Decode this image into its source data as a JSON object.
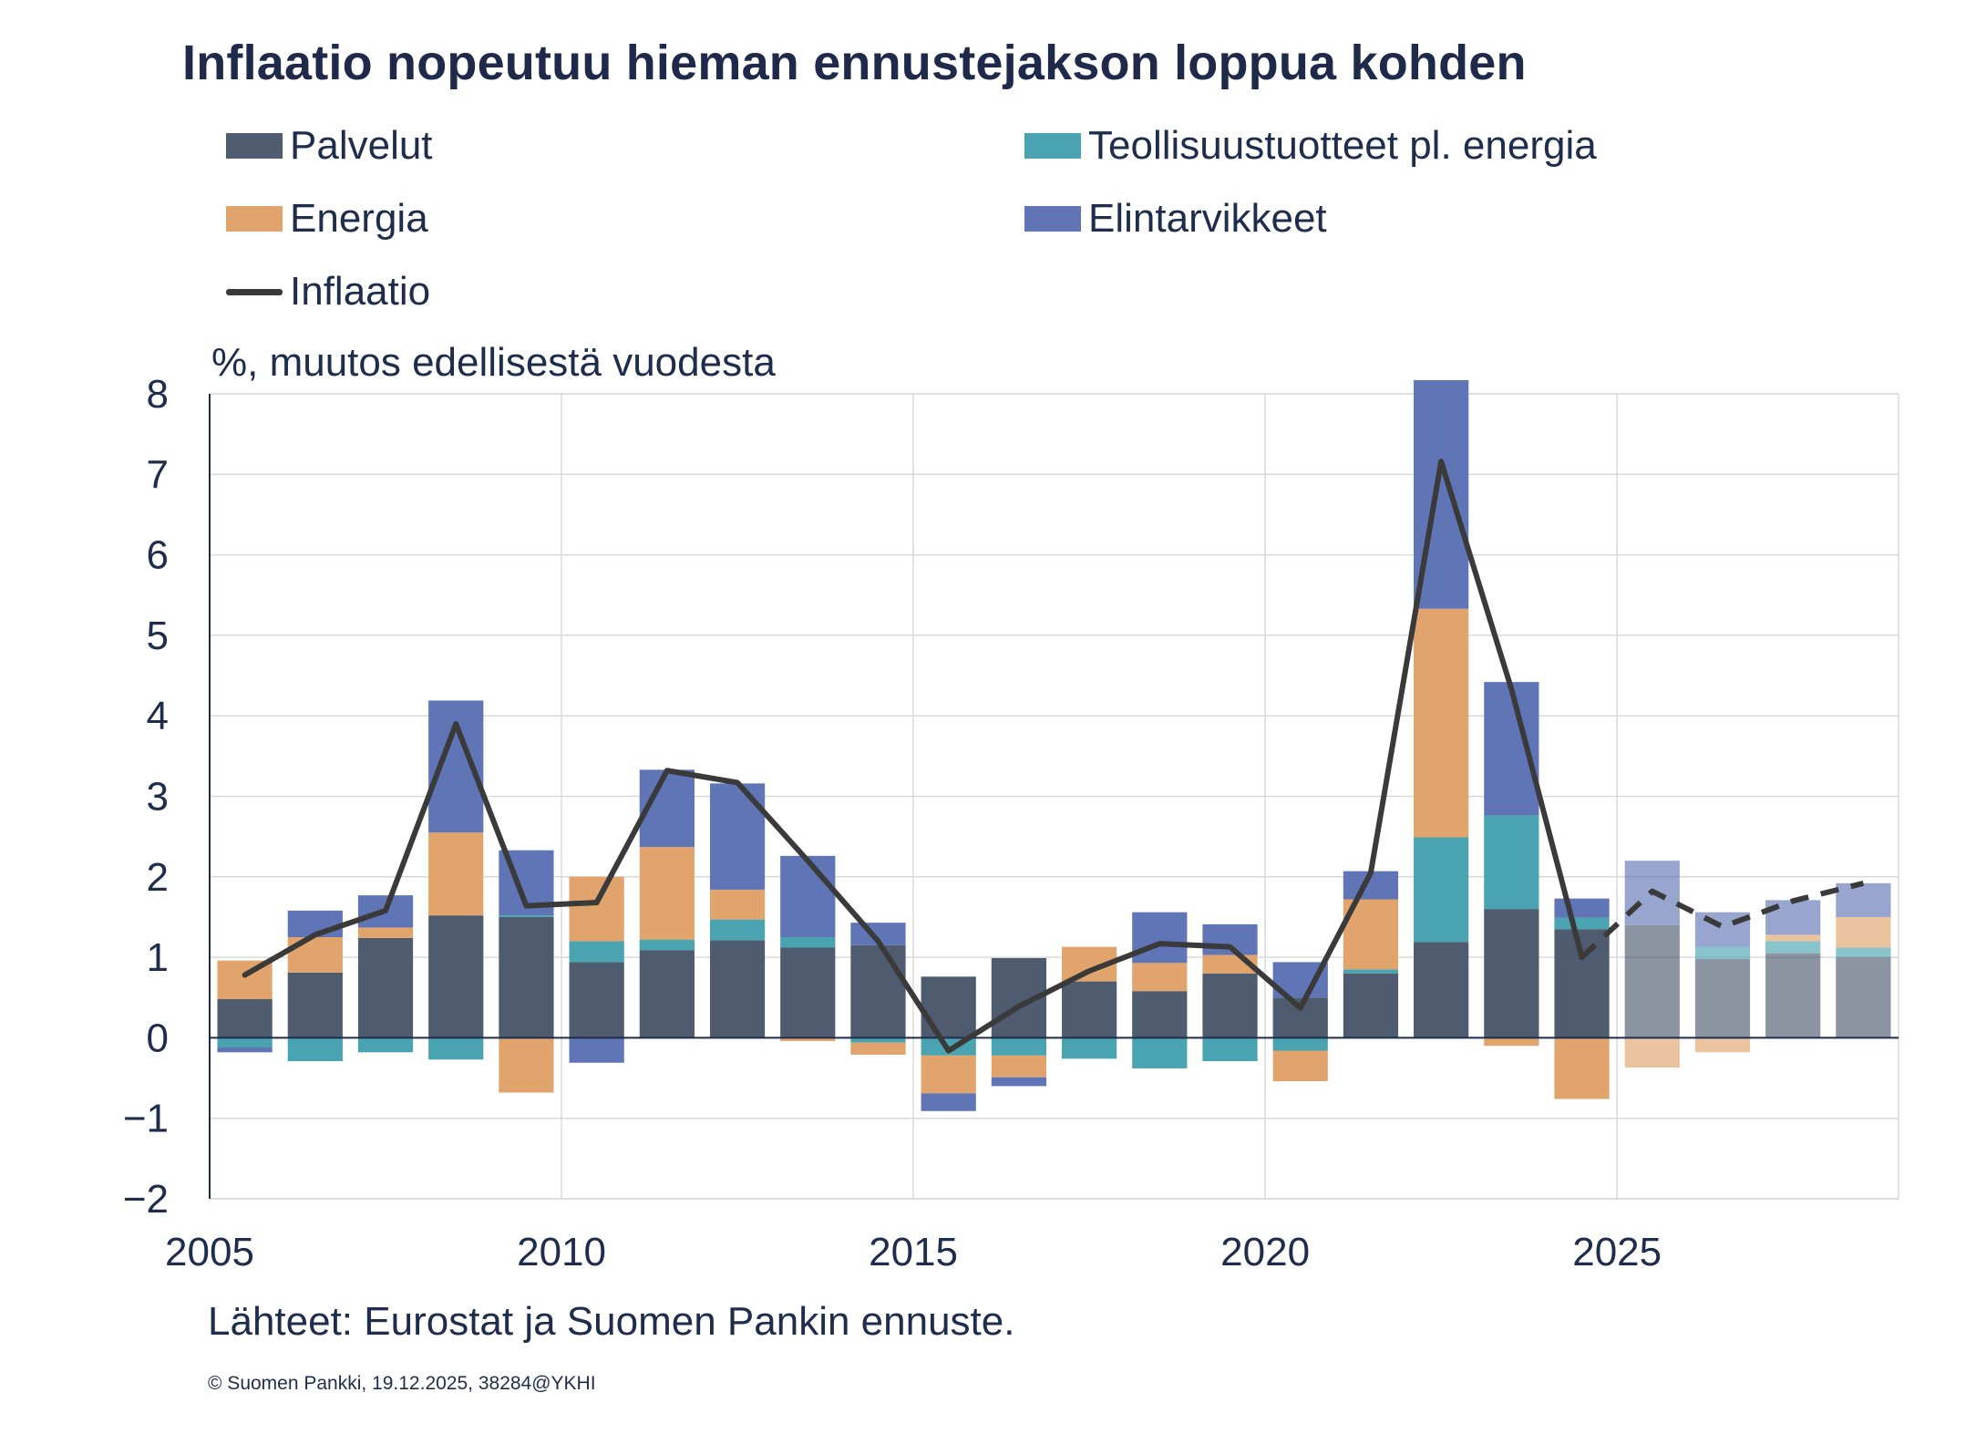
{
  "chart_data": {
    "type": "bar",
    "stacked": true,
    "title": "Inflaatio nopeutuu hieman ennustejakson loppua kohden",
    "ylabel": "%, muutos edellisestä vuodesta",
    "xlabel": "",
    "ylim": [
      -2,
      8
    ],
    "yticks": [
      -2,
      -1,
      0,
      1,
      2,
      3,
      4,
      5,
      6,
      7,
      8
    ],
    "ytick_labels": [
      "−2",
      "−1",
      "0",
      "1",
      "2",
      "3",
      "4",
      "5",
      "6",
      "7",
      "8"
    ],
    "xticks": [
      2005,
      2010,
      2015,
      2020,
      2025
    ],
    "xtick_labels": [
      "2005",
      "2010",
      "2015",
      "2020",
      "2025"
    ],
    "x_range": [
      2005,
      2029
    ],
    "categories": [
      2005,
      2006,
      2007,
      2008,
      2009,
      2010,
      2011,
      2012,
      2013,
      2014,
      2015,
      2016,
      2017,
      2018,
      2019,
      2020,
      2021,
      2022,
      2023,
      2024,
      2025,
      2026,
      2027,
      2028
    ],
    "forecast_start": 2025,
    "legend_position": "top",
    "series": [
      {
        "name": "Palvelut",
        "color": "#4f5b6e",
        "values": [
          0.48,
          0.81,
          1.24,
          1.52,
          1.5,
          0.94,
          1.09,
          1.21,
          1.12,
          1.15,
          0.76,
          0.99,
          0.7,
          0.58,
          0.8,
          0.5,
          0.8,
          1.19,
          1.6,
          1.35,
          1.4,
          0.98,
          1.05,
          1.0
        ]
      },
      {
        "name": "Teollisuustuotteet pl. energia",
        "color": "#4aa3b0",
        "values": [
          -0.12,
          -0.29,
          -0.18,
          -0.27,
          0.02,
          0.26,
          0.13,
          0.26,
          0.13,
          -0.06,
          -0.22,
          -0.22,
          -0.26,
          -0.38,
          -0.29,
          -0.16,
          0.05,
          1.3,
          1.16,
          0.14,
          0.0,
          0.15,
          0.15,
          0.12
        ]
      },
      {
        "name": "Energia",
        "color": "#e0a46c",
        "values": [
          0.48,
          0.44,
          0.13,
          1.03,
          -0.68,
          0.8,
          1.15,
          0.37,
          -0.04,
          -0.15,
          -0.47,
          -0.27,
          0.43,
          0.35,
          0.23,
          -0.38,
          0.87,
          2.84,
          -0.1,
          -0.76,
          -0.37,
          -0.18,
          0.08,
          0.38
        ]
      },
      {
        "name": "Elintarvikkeet",
        "color": "#5f75b6",
        "values": [
          -0.06,
          0.33,
          0.4,
          1.64,
          0.81,
          -0.31,
          0.96,
          1.32,
          1.01,
          0.28,
          -0.22,
          -0.11,
          0.0,
          0.63,
          0.38,
          0.44,
          0.35,
          2.84,
          1.66,
          0.24,
          0.8,
          0.43,
          0.43,
          0.42
        ]
      }
    ],
    "line": {
      "name": "Inflaatio",
      "color": "#3a3a3a",
      "values": [
        0.78,
        1.28,
        1.58,
        3.9,
        1.64,
        1.68,
        3.32,
        3.17,
        2.2,
        1.2,
        -0.16,
        0.39,
        0.83,
        1.17,
        1.13,
        0.37,
        2.05,
        7.16,
        4.33,
        1.0,
        1.82,
        1.38,
        1.7,
        1.92
      ]
    }
  },
  "legend": {
    "palvelut": "Palvelut",
    "teollisuus": "Teollisuustuotteet pl. energia",
    "energia": "Energia",
    "elintarvikkeet": "Elintarvikkeet",
    "inflaatio": "Inflaatio"
  },
  "footer": {
    "source": "Lähteet: Eurostat ja Suomen Pankin ennuste.",
    "copyright": "© Suomen Pankki, 19.12.2025, 38284@YKHI"
  }
}
